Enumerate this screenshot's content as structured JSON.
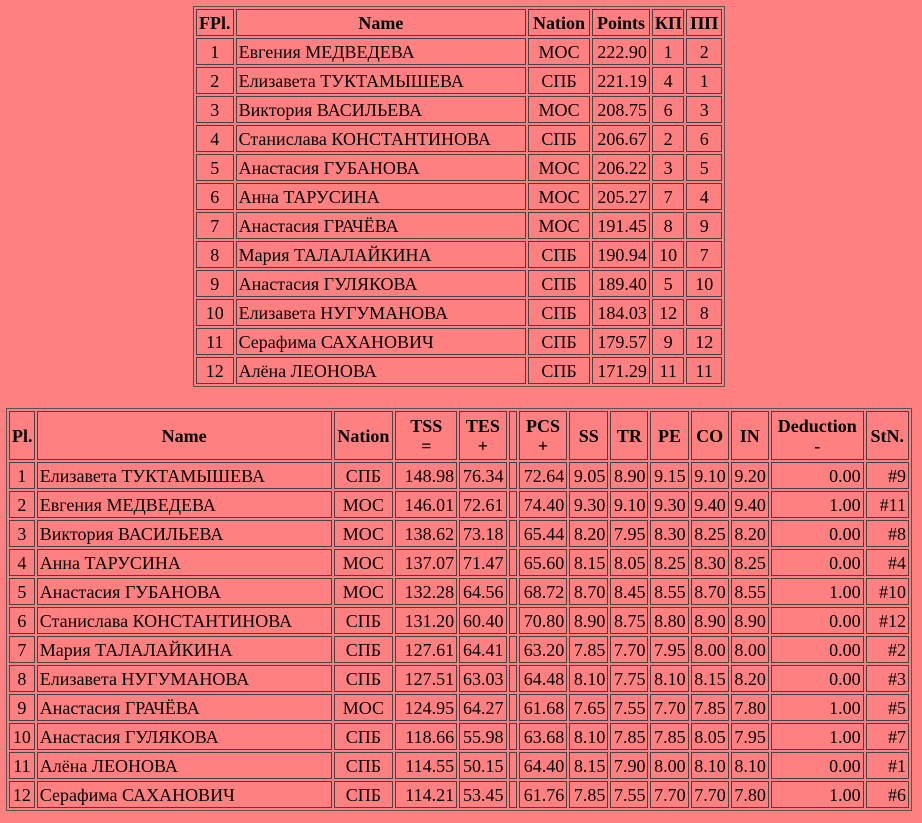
{
  "final_table": {
    "header": [
      "FPl.",
      "Name",
      "Nation",
      "Points",
      "КП",
      "ПП"
    ],
    "rows": [
      [
        "1",
        "Евгения МЕДВЕДЕВА",
        "МОС",
        "222.90",
        "1",
        "2"
      ],
      [
        "2",
        "Елизавета ТУКТАМЫШЕВА",
        "СПБ",
        "221.19",
        "4",
        "1"
      ],
      [
        "3",
        "Виктория ВАСИЛЬЕВА",
        "МОС",
        "208.75",
        "6",
        "3"
      ],
      [
        "4",
        "Станислава КОНСТАНТИНОВА",
        "СПБ",
        "206.67",
        "2",
        "6"
      ],
      [
        "5",
        "Анастасия ГУБАНОВА",
        "МОС",
        "206.22",
        "3",
        "5"
      ],
      [
        "6",
        "Анна ТАРУСИНА",
        "МОС",
        "205.27",
        "7",
        "4"
      ],
      [
        "7",
        "Анастасия ГРАЧЁВА",
        "МОС",
        "191.45",
        "8",
        "9"
      ],
      [
        "8",
        "Мария ТАЛАЛАЙКИНА",
        "СПБ",
        "190.94",
        "10",
        "7"
      ],
      [
        "9",
        "Анастасия ГУЛЯКОВА",
        "СПБ",
        "189.40",
        "5",
        "10"
      ],
      [
        "10",
        "Елизавета НУГУМАНОВА",
        "СПБ",
        "184.03",
        "12",
        "8"
      ],
      [
        "11",
        "Серафима САХАНОВИЧ",
        "СПБ",
        "179.57",
        "9",
        "12"
      ],
      [
        "12",
        "Алёна ЛЕОНОВА",
        "СПБ",
        "171.29",
        "11",
        "11"
      ]
    ]
  },
  "segment_table": {
    "header": [
      [
        "Pl."
      ],
      [
        "Name"
      ],
      [
        "Nation"
      ],
      [
        "TSS",
        "="
      ],
      [
        "TES",
        "+"
      ],
      [
        "PCS",
        "+"
      ],
      [
        "SS"
      ],
      [
        "TR"
      ],
      [
        "PE"
      ],
      [
        "CO"
      ],
      [
        "IN"
      ],
      [
        "Deduction",
        "-"
      ],
      [
        "StN."
      ]
    ],
    "rows": [
      [
        "1",
        "Елизавета ТУКТАМЫШЕВА",
        "СПБ",
        "148.98",
        "76.34",
        "72.64",
        "9.05",
        "8.90",
        "9.15",
        "9.10",
        "9.20",
        "0.00",
        "#9"
      ],
      [
        "2",
        "Евгения МЕДВЕДЕВА",
        "МОС",
        "146.01",
        "72.61",
        "74.40",
        "9.30",
        "9.10",
        "9.30",
        "9.40",
        "9.40",
        "1.00",
        "#11"
      ],
      [
        "3",
        "Виктория ВАСИЛЬЕВА",
        "МОС",
        "138.62",
        "73.18",
        "65.44",
        "8.20",
        "7.95",
        "8.30",
        "8.25",
        "8.20",
        "0.00",
        "#8"
      ],
      [
        "4",
        "Анна ТАРУСИНА",
        "МОС",
        "137.07",
        "71.47",
        "65.60",
        "8.15",
        "8.05",
        "8.25",
        "8.30",
        "8.25",
        "0.00",
        "#4"
      ],
      [
        "5",
        "Анастасия ГУБАНОВА",
        "МОС",
        "132.28",
        "64.56",
        "68.72",
        "8.70",
        "8.45",
        "8.55",
        "8.70",
        "8.55",
        "1.00",
        "#10"
      ],
      [
        "6",
        "Станислава КОНСТАНТИНОВА",
        "СПБ",
        "131.20",
        "60.40",
        "70.80",
        "8.90",
        "8.75",
        "8.80",
        "8.90",
        "8.90",
        "0.00",
        "#12"
      ],
      [
        "7",
        "Мария ТАЛАЛАЙКИНА",
        "СПБ",
        "127.61",
        "64.41",
        "63.20",
        "7.85",
        "7.70",
        "7.95",
        "8.00",
        "8.00",
        "0.00",
        "#2"
      ],
      [
        "8",
        "Елизавета НУГУМАНОВА",
        "СПБ",
        "127.51",
        "63.03",
        "64.48",
        "8.10",
        "7.75",
        "8.10",
        "8.15",
        "8.20",
        "0.00",
        "#3"
      ],
      [
        "9",
        "Анастасия ГРАЧЁВА",
        "МОС",
        "124.95",
        "64.27",
        "61.68",
        "7.65",
        "7.55",
        "7.70",
        "7.85",
        "7.80",
        "1.00",
        "#5"
      ],
      [
        "10",
        "Анастасия ГУЛЯКОВА",
        "СПБ",
        "118.66",
        "55.98",
        "63.68",
        "8.10",
        "7.85",
        "7.85",
        "8.05",
        "7.95",
        "1.00",
        "#7"
      ],
      [
        "11",
        "Алёна ЛЕОНОВА",
        "СПБ",
        "114.55",
        "50.15",
        "64.40",
        "8.15",
        "7.90",
        "8.00",
        "8.10",
        "8.10",
        "0.00",
        "#1"
      ],
      [
        "12",
        "Серафима САХАНОВИЧ",
        "СПБ",
        "114.21",
        "53.45",
        "61.76",
        "7.85",
        "7.55",
        "7.70",
        "7.70",
        "7.80",
        "1.00",
        "#6"
      ]
    ]
  }
}
